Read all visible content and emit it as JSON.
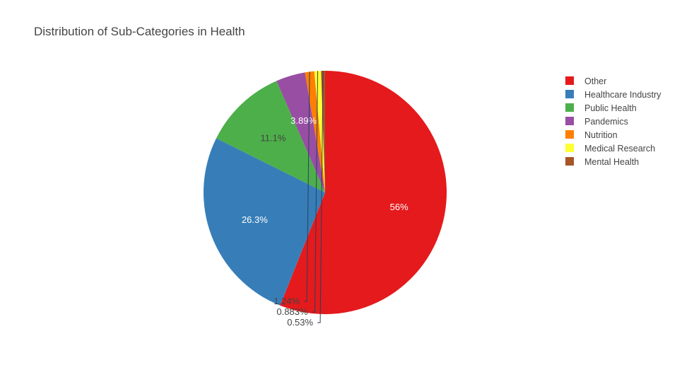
{
  "chart_data": {
    "type": "pie",
    "title": "Distribution of Sub-Categories in Health",
    "labels": [
      "Other",
      "Healthcare Industry",
      "Public Health",
      "Pandemics",
      "Nutrition",
      "Medical Research",
      "Mental Health"
    ],
    "values": [
      56.0,
      26.3,
      11.1,
      3.89,
      1.24,
      0.883,
      0.53
    ],
    "text_labels": [
      "56%",
      "26.3%",
      "11.1%",
      "3.89%",
      "1.24%",
      "0.883%",
      "0.53%"
    ],
    "colors": [
      "#e41a1c",
      "#377eb8",
      "#4daf4a",
      "#984ea3",
      "#ff7f00",
      "#ffff33",
      "#a65628"
    ],
    "direction": "clockwise",
    "start_angle": 90,
    "legend_position": "right"
  }
}
